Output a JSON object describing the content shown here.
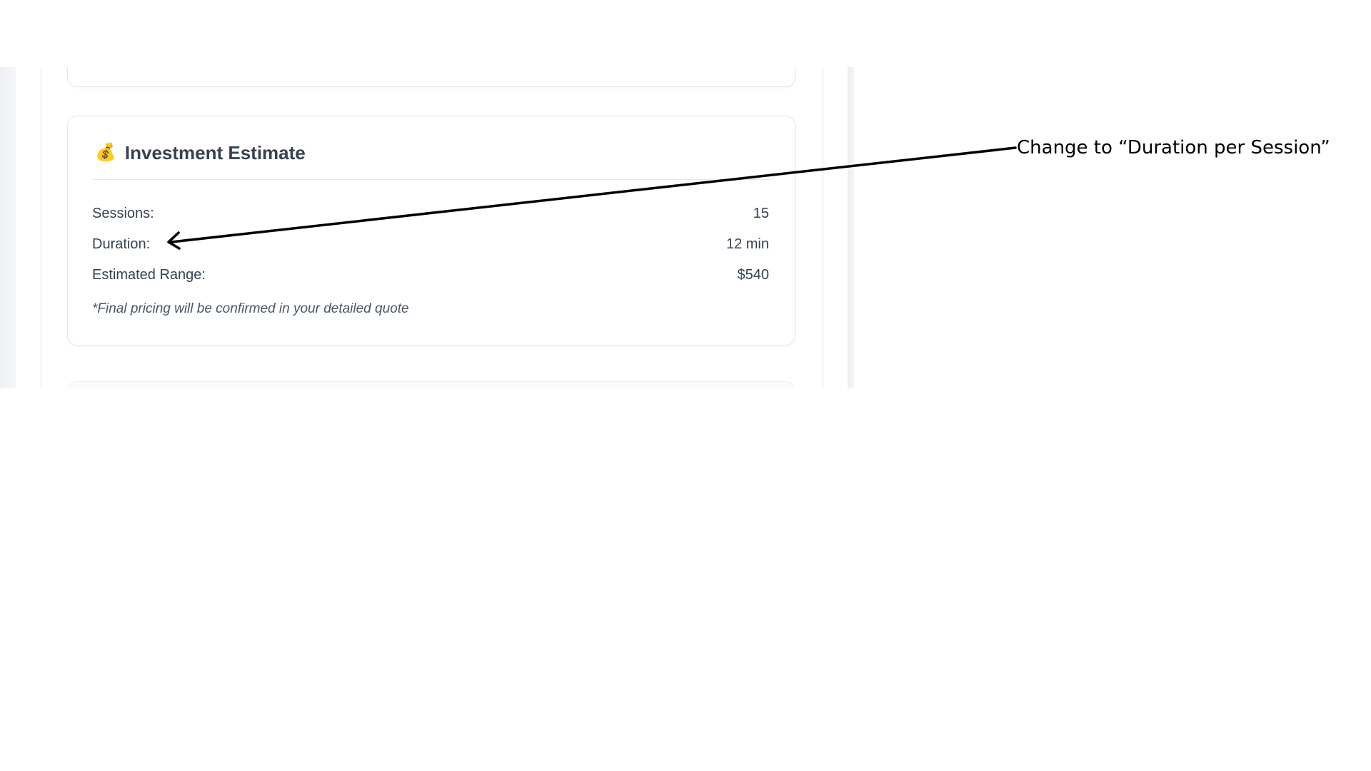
{
  "card": {
    "icon": "💰",
    "icon_name": "money-bag-icon",
    "title": "Investment Estimate",
    "rows": [
      {
        "label": "Sessions:",
        "value": "15"
      },
      {
        "label": "Duration:",
        "value": "12 min"
      },
      {
        "label": "Estimated Range:",
        "value": "$540"
      }
    ],
    "note": "*Final pricing will be confirmed in your detailed quote"
  },
  "annotation": {
    "text": "Change to “Duration per Session”"
  },
  "colors": {
    "title": "#374151",
    "text": "#374151",
    "note": "#4b5563",
    "border": "#e5e7eb",
    "annotation": "#000000"
  }
}
